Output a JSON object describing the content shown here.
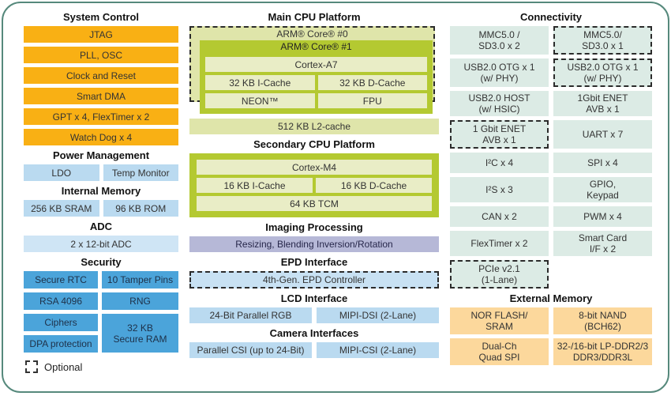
{
  "palette": {
    "system_control_orange": "#f9b014",
    "light_blue": "#badaf0",
    "adc_blue": "#cfe5f5",
    "security_blue": "#4ba4da",
    "cpu_green": "#b4c931",
    "cpu_green_light": "#e9edc6",
    "cpu_olive_light": "#dfe5aa",
    "imaging_purple": "#b6b8d7",
    "epd_blue": "#c8e1f3",
    "connectivity_teal": "#dcebe5",
    "external_memory_orange": "#fcd89c",
    "canvas_border_teal": "#56897c"
  },
  "left_column": {
    "system_control": {
      "title": "System Control",
      "items": [
        "JTAG",
        "PLL, OSC",
        "Clock and Reset",
        "Smart DMA",
        "GPT x 4, FlexTimer x 2",
        "Watch Dog x 4"
      ]
    },
    "power_management": {
      "title": "Power Management",
      "items": [
        "LDO",
        "Temp Monitor"
      ]
    },
    "internal_memory": {
      "title": "Internal Memory",
      "items": [
        "256 KB SRAM",
        "96 KB ROM"
      ]
    },
    "adc": {
      "title": "ADC",
      "items": [
        "2 x 12-bit ADC"
      ]
    },
    "security": {
      "title": "Security",
      "items": [
        "Secure RTC",
        "10 Tamper Pins",
        "RSA 4096",
        "RNG",
        "Ciphers",
        "DPA protection",
        "32 KB\nSecure RAM"
      ]
    },
    "legend": {
      "label": "Optional"
    }
  },
  "center_column": {
    "main_cpu": {
      "title": "Main CPU Platform",
      "core0_label": "ARM® Core® #0",
      "core1_label": "ARM® Core® #1",
      "cortex": "Cortex-A7",
      "icache": "32 KB I-Cache",
      "dcache": "32 KB D-Cache",
      "neon": "NEON™",
      "fpu": "FPU",
      "l2": "512 KB L2-cache"
    },
    "secondary_cpu": {
      "title": "Secondary CPU Platform",
      "cortex": "Cortex-M4",
      "icache": "16 KB I-Cache",
      "dcache": "16 KB D-Cache",
      "tcm": "64 KB TCM"
    },
    "imaging": {
      "title": "Imaging Processing",
      "block": "Resizing, Blending Inversion/Rotation"
    },
    "epd": {
      "title": "EPD Interface",
      "block": "4th-Gen. EPD Controller"
    },
    "lcd": {
      "title": "LCD Interface",
      "items": [
        "24-Bit Parallel RGB",
        "MIPI-DSI (2-Lane)"
      ]
    },
    "camera": {
      "title": "Camera Interfaces",
      "items": [
        "Parallel CSI (up to 24-Bit)",
        "MIPI-CSI (2-Lane)"
      ]
    }
  },
  "right_column": {
    "connectivity": {
      "title": "Connectivity",
      "cells": [
        {
          "label": "MMC5.0 /\nSD3.0 x 2",
          "optional": false
        },
        {
          "label": "MMC5.0/\nSD3.0 x 1",
          "optional": true
        },
        {
          "label": "USB2.0 OTG x 1\n(w/ PHY)",
          "optional": false
        },
        {
          "label": "USB2.0 OTG x 1\n(w/ PHY)",
          "optional": true
        },
        {
          "label": "USB2.0 HOST\n(w/ HSIC)",
          "optional": false
        },
        {
          "label": "1Gbit ENET\nAVB x 1",
          "optional": false
        },
        {
          "label": "1 Gbit ENET\nAVB x 1",
          "optional": true
        },
        {
          "label": "UART x 7",
          "optional": false
        },
        {
          "label": "I²C x 4",
          "optional": false
        },
        {
          "label": "SPI x 4",
          "optional": false
        },
        {
          "label": "I²S x 3",
          "optional": false
        },
        {
          "label": "GPIO,\nKeypad",
          "optional": false
        },
        {
          "label": "CAN x 2",
          "optional": false
        },
        {
          "label": "PWM x 4",
          "optional": false
        },
        {
          "label": "FlexTimer x 2",
          "optional": false
        },
        {
          "label": "Smart Card\nI/F x 2",
          "optional": false
        },
        {
          "label": "PCIe v2.1\n(1-Lane)",
          "optional": true
        }
      ]
    },
    "external_memory": {
      "title": "External Memory",
      "cells": [
        "NOR FLASH/\nSRAM",
        "8-bit NAND\n(BCH62)",
        "Dual-Ch\nQuad SPI",
        "32-/16-bit LP-DDR2/3\nDDR3/DDR3L"
      ]
    }
  }
}
